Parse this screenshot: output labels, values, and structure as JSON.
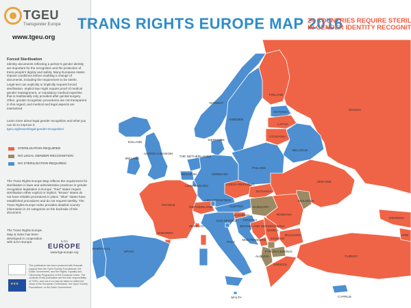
{
  "header": {
    "title": "TRANS RIGHTS EUROPE MAP 2016",
    "subtitle_line1": "24 COUNTRIES REQUIRE STERILISA",
    "subtitle_line2": "IN GENDER IDENTITY RECOGNITIO"
  },
  "logo": {
    "name": "TGEU",
    "subtitle": "Transgender Europe",
    "url": "www.tgeu.org"
  },
  "sidebar": {
    "section_title": "Forced Sterilisation",
    "para1": "Identity documents reflecting a person's gender identity are important for the recognition and the protection of trans people's dignity and safety. Many European states impose conditions before enabling a change of documents, including the requirement to be sterile.",
    "para2": "Legal text can explicitly or implicitly request forced sterilisation. Implicit law might require proof of medical gender reassignment, or mandatory medical expertise that is traditionally only provided after genital surgery. Often, gender recognition procedures are not transparent in this regard, and medical and legal aspects are intertwined.",
    "para3": "Learn more about legal gender recognition and what you can do to improve it:",
    "link": "tgeu.org/issues/legal-gender-recognition/",
    "legend": [
      {
        "label": "STERILISATION REQUIRED",
        "color": "#ef6446"
      },
      {
        "label": "NO LEGAL GENDER RECOGNITION",
        "color": "#9b8a63"
      },
      {
        "label": "NO STERILISATION REQUIRED",
        "color": "#4d8fd1"
      }
    ],
    "para4": "The Trans Rights Europe Map reflects the requirement for sterilisation in laws and administrative practices in gender recognition legislation in Europe. \"Red\" states require sterilisation either explicit or implicit, \"Brown\" states do not have reliable procedures in place. \"Blue\" states have established procedures and do not request sterility. The Trans Rights Europe Index provides detailed country information in 22 categories on the backside of this document.",
    "para5": "The Trans Rights Europe Map & Index has been developed in cooperation with ILGA-Europe.",
    "ilga_top": "ILGA",
    "ilga_name": "EUROPE",
    "ilga_url": "www.ilga-europe.org",
    "funding_text": "This publication has been produced with financial support from the Open Society Foundations, the Dutch Government, and the Rights, Equality and Citizenship Programme of the European Union. The contents of this publication are the sole responsibility of TGEU, and can in no way be taken to reflect the views of the European Commission, the Open Society Foundations, or the Dutch Government."
  },
  "map": {
    "colors": {
      "red": "#ef6446",
      "brown": "#9b8a63",
      "blue": "#4d8fd1",
      "sea": "#ffffff"
    },
    "labels": {
      "finland": "FINLAND",
      "norway": "NORWAY",
      "sweden": "SWEDEN",
      "estonia": "ESTONIA",
      "latvia": "LATVIA",
      "lithuania": "LITHUANIA",
      "russia": "RUSSIA",
      "iceland": "ICELAND",
      "denmark": "DENMARK",
      "ireland": "IRELAND",
      "uk": "UNITED KINGDOM",
      "netherlands": "THE NETHERLANDS",
      "belgium": "BELGIUM",
      "luxembourg": "LUXEMBOURG",
      "germany": "GERMANY",
      "poland": "POLAND",
      "belarus": "BELARUS",
      "ukraine": "UKRAINE",
      "czech": "CZECH REPUBLIC",
      "slovakia": "SLOVAKIA",
      "moldova": "MOLDOVA",
      "france": "FRANCE",
      "switzerland": "SWITZERLAND",
      "liechtenstein": "LIECHTENSTEIN",
      "austria": "AUSTRIA",
      "hungary": "HUNGARY",
      "romania": "ROMANIA",
      "slovenia": "SLOVENIA",
      "croatia": "CROATIA",
      "bosnia": "BOSNIA AND HERZEGOVINA",
      "serbia": "SERBIA",
      "monaco": "MONACO",
      "sanmarino": "SAN MARINO",
      "andorra": "ANDORRA",
      "portugal": "PORTUGAL",
      "spain": "SPAIN",
      "italy": "ITALY",
      "montenegro": "MONTENEGRO",
      "kosovo": "KOSOVO",
      "macedonia": "FYR MACEDONIA",
      "bulgaria": "BULGARIA",
      "albania": "ALBANIA",
      "greece": "GREECE",
      "turkey": "TURKEY",
      "georgia": "GEORGIA",
      "armenia": "ARM",
      "malta": "MALTA",
      "cyprus": "CYPRUS"
    }
  }
}
